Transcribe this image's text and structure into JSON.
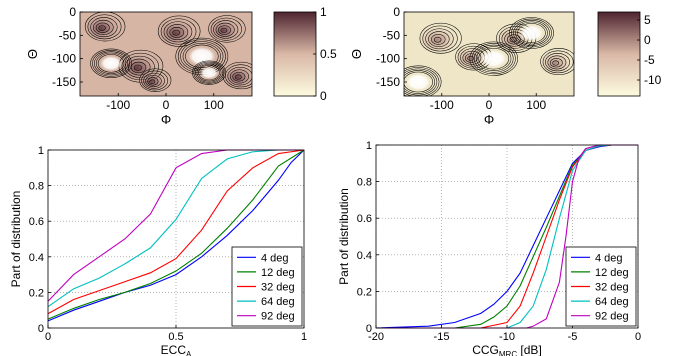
{
  "chart_data": [
    {
      "type": "heatmap",
      "panel": "top-left",
      "xlabel": "Φ",
      "ylabel": "Θ",
      "xticks": [
        -100,
        0,
        100
      ],
      "yticks": [
        0,
        -50,
        -100,
        -150
      ],
      "xlim": [
        -180,
        180
      ],
      "ylim": [
        -180,
        0
      ],
      "colorbar": {
        "ticks": [
          0,
          0.5,
          1
        ],
        "range": [
          0,
          1
        ],
        "colors": [
          "#fdfbe0",
          "#d9b8a6",
          "#4e2530"
        ]
      },
      "hotspots": [
        {
          "x": -135,
          "y": -35,
          "value": 0.85,
          "r": 38
        },
        {
          "x": -60,
          "y": -120,
          "value": 0.9,
          "r": 42
        },
        {
          "x": 20,
          "y": -45,
          "value": 0.8,
          "r": 40
        },
        {
          "x": 120,
          "y": -40,
          "value": 0.75,
          "r": 35
        },
        {
          "x": 150,
          "y": -140,
          "value": 0.8,
          "r": 35
        },
        {
          "x": -30,
          "y": -150,
          "value": 0.7,
          "r": 30
        }
      ],
      "voids": [
        {
          "x": -115,
          "y": -110,
          "value": 0.05,
          "r": 22
        },
        {
          "x": 75,
          "y": -95,
          "value": 0.05,
          "r": 28
        },
        {
          "x": 90,
          "y": -130,
          "value": 0.1,
          "r": 18
        }
      ]
    },
    {
      "type": "heatmap",
      "panel": "top-right",
      "xlabel": "Φ",
      "ylabel": "Θ",
      "xticks": [
        -100,
        0,
        100
      ],
      "yticks": [
        0,
        -50,
        -100,
        -150
      ],
      "xlim": [
        -180,
        180
      ],
      "ylim": [
        -180,
        0
      ],
      "colorbar": {
        "ticks": [
          5,
          0,
          -5,
          -10
        ],
        "range": [
          -14,
          7
        ],
        "colors": [
          "#fdfbe0",
          "#d9b8a6",
          "#4e2530"
        ]
      },
      "hotspots": [
        {
          "x": -110,
          "y": -60,
          "value": 1,
          "r": 40
        },
        {
          "x": -40,
          "y": -100,
          "value": 3,
          "r": 35
        },
        {
          "x": 50,
          "y": -60,
          "value": 2,
          "r": 38
        },
        {
          "x": 140,
          "y": -110,
          "value": 0,
          "r": 35
        }
      ],
      "voids": [
        {
          "x": 10,
          "y": -100,
          "value": -13,
          "r": 26
        },
        {
          "x": 90,
          "y": -45,
          "value": -12,
          "r": 24
        },
        {
          "x": -150,
          "y": -150,
          "value": -10,
          "r": 25
        }
      ]
    },
    {
      "type": "line",
      "panel": "bottom-left",
      "xlabel": "ECC_A",
      "ylabel": "Part of distribution",
      "xlim": [
        0,
        1
      ],
      "ylim": [
        0,
        1
      ],
      "xticks": [
        0,
        0.5,
        1
      ],
      "yticks": [
        0,
        0.2,
        0.4,
        0.6,
        0.8,
        1
      ],
      "grid": true,
      "legend": "bottom-right",
      "series": [
        {
          "name": "4 deg",
          "color": "#0000ff",
          "x": [
            0,
            0.1,
            0.2,
            0.3,
            0.4,
            0.5,
            0.6,
            0.7,
            0.8,
            0.9,
            0.95,
            1
          ],
          "y": [
            0.04,
            0.1,
            0.15,
            0.2,
            0.24,
            0.3,
            0.4,
            0.52,
            0.66,
            0.83,
            0.93,
            1
          ]
        },
        {
          "name": "12 deg",
          "color": "#008000",
          "x": [
            0,
            0.1,
            0.2,
            0.3,
            0.4,
            0.5,
            0.6,
            0.7,
            0.8,
            0.9,
            1
          ],
          "y": [
            0.05,
            0.11,
            0.16,
            0.2,
            0.25,
            0.32,
            0.42,
            0.56,
            0.72,
            0.91,
            1
          ]
        },
        {
          "name": "32 deg",
          "color": "#ff0000",
          "x": [
            0,
            0.1,
            0.2,
            0.3,
            0.4,
            0.5,
            0.6,
            0.7,
            0.8,
            0.9,
            1
          ],
          "y": [
            0.08,
            0.16,
            0.21,
            0.26,
            0.31,
            0.39,
            0.55,
            0.77,
            0.9,
            0.98,
            1
          ]
        },
        {
          "name": "64 deg",
          "color": "#00bfbf",
          "x": [
            0,
            0.1,
            0.2,
            0.3,
            0.4,
            0.5,
            0.6,
            0.7,
            0.8,
            0.9,
            1
          ],
          "y": [
            0.12,
            0.22,
            0.28,
            0.36,
            0.45,
            0.61,
            0.84,
            0.95,
            0.99,
            1,
            1
          ]
        },
        {
          "name": "92 deg",
          "color": "#bf00bf",
          "x": [
            0,
            0.1,
            0.2,
            0.3,
            0.4,
            0.5,
            0.6,
            0.7,
            0.8,
            1
          ],
          "y": [
            0.15,
            0.3,
            0.4,
            0.5,
            0.64,
            0.9,
            0.98,
            1,
            1,
            1
          ]
        }
      ]
    },
    {
      "type": "line",
      "panel": "bottom-right",
      "xlabel": "CCG_MRC [dB]",
      "ylabel": "Part of distribution",
      "xlim": [
        -20,
        0
      ],
      "ylim": [
        0,
        1
      ],
      "xticks": [
        -20,
        -15,
        -10,
        -5,
        0
      ],
      "yticks": [
        0,
        0.2,
        0.4,
        0.6,
        0.8,
        1
      ],
      "grid": true,
      "legend": "bottom-right",
      "series": [
        {
          "name": "4 deg",
          "color": "#0000ff",
          "x": [
            -20,
            -16,
            -14,
            -12,
            -11,
            -10,
            -9,
            -8,
            -7,
            -6,
            -5,
            -4,
            -3,
            -2,
            0
          ],
          "y": [
            0,
            0.01,
            0.03,
            0.08,
            0.13,
            0.2,
            0.3,
            0.45,
            0.6,
            0.75,
            0.9,
            0.97,
            0.99,
            1,
            1
          ]
        },
        {
          "name": "12 deg",
          "color": "#008000",
          "x": [
            -20,
            -14,
            -12,
            -11,
            -10,
            -9,
            -8,
            -7,
            -6,
            -5,
            -4,
            -3,
            -2,
            0
          ],
          "y": [
            0,
            0,
            0.02,
            0.06,
            0.12,
            0.23,
            0.39,
            0.55,
            0.72,
            0.89,
            0.97,
            0.995,
            1,
            1
          ]
        },
        {
          "name": "32 deg",
          "color": "#ff0000",
          "x": [
            -20,
            -12,
            -10,
            -9,
            -8,
            -7,
            -6,
            -5,
            -4,
            -3,
            -2,
            0
          ],
          "y": [
            0,
            0,
            0.03,
            0.12,
            0.3,
            0.5,
            0.7,
            0.88,
            0.97,
            0.995,
            1,
            1
          ]
        },
        {
          "name": "64 deg",
          "color": "#00bfbf",
          "x": [
            -20,
            -10,
            -9,
            -8,
            -7,
            -6,
            -5,
            -4,
            -3,
            -2,
            0
          ],
          "y": [
            0,
            0,
            0.03,
            0.12,
            0.32,
            0.6,
            0.86,
            0.97,
            0.995,
            1,
            1
          ]
        },
        {
          "name": "92 deg",
          "color": "#bf00bf",
          "x": [
            -20,
            -8.5,
            -8,
            -7,
            -6,
            -5.5,
            -5,
            -4.5,
            -4,
            -3,
            -2,
            0
          ],
          "y": [
            0,
            0,
            0.01,
            0.05,
            0.25,
            0.5,
            0.8,
            0.93,
            0.98,
            1,
            1,
            1
          ]
        }
      ]
    }
  ]
}
